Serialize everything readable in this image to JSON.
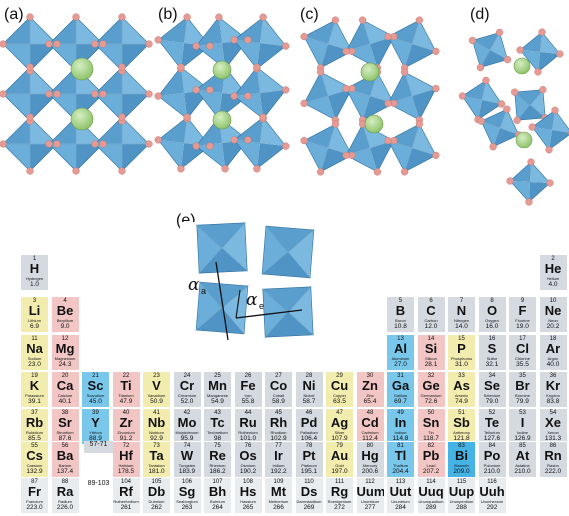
{
  "panels": [
    "(a)",
    "(b)",
    "(c)",
    "(d)",
    "(e)"
  ],
  "angles": {
    "alpha": "α",
    "sub_a": "a",
    "sub_e": "e"
  },
  "colors": {
    "octahedron": "#5fa3d0",
    "octahedron_edge": "#2f6f9f",
    "anion": "#e59a94",
    "a_cation": "#8fc46a",
    "grey": "#d4dae0",
    "pink": "#f1c6c4",
    "yellow": "#f2ecaf",
    "blue": "#79c8ec",
    "dark_blue": "#45b3e6",
    "light": "#e8ecef"
  },
  "series_labels": {
    "lanthanide_slot": "57-71",
    "actinide_slot": "89-103"
  },
  "elements": [
    {
      "n": "1",
      "s": "H",
      "name": "Hydrogen",
      "w": "1.0",
      "c": "grey",
      "col": 0,
      "row": 0
    },
    {
      "n": "2",
      "s": "He",
      "name": "Helium",
      "w": "4.0",
      "c": "grey",
      "col": 17,
      "row": 0
    },
    {
      "n": "3",
      "s": "Li",
      "name": "Lithium",
      "w": "6.9",
      "c": "yellow",
      "col": 0,
      "row": 1
    },
    {
      "n": "4",
      "s": "Be",
      "name": "Beryllium",
      "w": "9.0",
      "c": "pink",
      "col": 1,
      "row": 1
    },
    {
      "n": "5",
      "s": "B",
      "name": "Boron",
      "w": "10.8",
      "c": "grey",
      "col": 12,
      "row": 1
    },
    {
      "n": "6",
      "s": "C",
      "name": "Carbon",
      "w": "12.0",
      "c": "grey",
      "col": 13,
      "row": 1
    },
    {
      "n": "7",
      "s": "N",
      "name": "Nitrogen",
      "w": "14.0",
      "c": "grey",
      "col": 14,
      "row": 1
    },
    {
      "n": "8",
      "s": "O",
      "name": "Oxygen",
      "w": "16.0",
      "c": "grey",
      "col": 15,
      "row": 1
    },
    {
      "n": "9",
      "s": "F",
      "name": "Fluorine",
      "w": "19.0",
      "c": "grey",
      "col": 16,
      "row": 1
    },
    {
      "n": "10",
      "s": "Ne",
      "name": "Neon",
      "w": "20.2",
      "c": "grey",
      "col": 17,
      "row": 1
    },
    {
      "n": "11",
      "s": "Na",
      "name": "Sodium",
      "w": "23.0",
      "c": "yellow",
      "col": 0,
      "row": 2
    },
    {
      "n": "12",
      "s": "Mg",
      "name": "Magnesium",
      "w": "24.3",
      "c": "pink",
      "col": 1,
      "row": 2
    },
    {
      "n": "13",
      "s": "Al",
      "name": "Aluminum",
      "w": "27.0",
      "c": "blue",
      "col": 12,
      "row": 2
    },
    {
      "n": "14",
      "s": "Si",
      "name": "Silicon",
      "w": "28.1",
      "c": "pink",
      "col": 13,
      "row": 2
    },
    {
      "n": "15",
      "s": "P",
      "name": "Phosphorus",
      "w": "31.0",
      "c": "yellow",
      "col": 14,
      "row": 2
    },
    {
      "n": "16",
      "s": "S",
      "name": "Sulfur",
      "w": "32.1",
      "c": "grey",
      "col": 15,
      "row": 2
    },
    {
      "n": "17",
      "s": "Cl",
      "name": "Chlorine",
      "w": "35.5",
      "c": "grey",
      "col": 16,
      "row": 2
    },
    {
      "n": "18",
      "s": "Ar",
      "name": "Argon",
      "w": "40.0",
      "c": "grey",
      "col": 17,
      "row": 2
    },
    {
      "n": "19",
      "s": "K",
      "name": "Potassium",
      "w": "39.1",
      "c": "yellow",
      "col": 0,
      "row": 3
    },
    {
      "n": "20",
      "s": "Ca",
      "name": "Calcium",
      "w": "40.1",
      "c": "pink",
      "col": 1,
      "row": 3
    },
    {
      "n": "21",
      "s": "Sc",
      "name": "Scandium",
      "w": "45.0",
      "c": "blue",
      "col": 2,
      "row": 3
    },
    {
      "n": "22",
      "s": "Ti",
      "name": "Titanium",
      "w": "47.9",
      "c": "pink",
      "col": 3,
      "row": 3
    },
    {
      "n": "23",
      "s": "V",
      "name": "Vanadium",
      "w": "50.9",
      "c": "yellow",
      "col": 4,
      "row": 3
    },
    {
      "n": "24",
      "s": "Cr",
      "name": "Chromium",
      "w": "52.0",
      "c": "grey",
      "col": 5,
      "row": 3
    },
    {
      "n": "25",
      "s": "Mn",
      "name": "Manganese",
      "w": "54.9",
      "c": "grey",
      "col": 6,
      "row": 3
    },
    {
      "n": "26",
      "s": "Fe",
      "name": "Iron",
      "w": "55.8",
      "c": "grey",
      "col": 7,
      "row": 3
    },
    {
      "n": "27",
      "s": "Co",
      "name": "Cobalt",
      "w": "58.9",
      "c": "grey",
      "col": 8,
      "row": 3
    },
    {
      "n": "28",
      "s": "Ni",
      "name": "Nickel",
      "w": "58.7",
      "c": "grey",
      "col": 9,
      "row": 3
    },
    {
      "n": "29",
      "s": "Cu",
      "name": "Copper",
      "w": "63.5",
      "c": "yellow",
      "col": 10,
      "row": 3
    },
    {
      "n": "30",
      "s": "Zn",
      "name": "Zinc",
      "w": "65.4",
      "c": "pink",
      "col": 11,
      "row": 3
    },
    {
      "n": "31",
      "s": "Ga",
      "name": "Gallium",
      "w": "69.7",
      "c": "blue",
      "col": 12,
      "row": 3
    },
    {
      "n": "32",
      "s": "Ge",
      "name": "Germanium",
      "w": "72.6",
      "c": "pink",
      "col": 13,
      "row": 3
    },
    {
      "n": "33",
      "s": "As",
      "name": "Arsenic",
      "w": "74.9",
      "c": "yellow",
      "col": 14,
      "row": 3
    },
    {
      "n": "34",
      "s": "Se",
      "name": "Selenium",
      "w": "79.0",
      "c": "grey",
      "col": 15,
      "row": 3
    },
    {
      "n": "35",
      "s": "Br",
      "name": "Bromine",
      "w": "79.9",
      "c": "grey",
      "col": 16,
      "row": 3
    },
    {
      "n": "36",
      "s": "Kr",
      "name": "Krypton",
      "w": "83.8",
      "c": "grey",
      "col": 17,
      "row": 3
    },
    {
      "n": "37",
      "s": "Rb",
      "name": "Rubidium",
      "w": "85.5",
      "c": "yellow",
      "col": 0,
      "row": 4
    },
    {
      "n": "38",
      "s": "Sr",
      "name": "Strontium",
      "w": "87.6",
      "c": "pink",
      "col": 1,
      "row": 4
    },
    {
      "n": "39",
      "s": "Y",
      "name": "Yttrium",
      "w": "88.9",
      "c": "blue",
      "col": 2,
      "row": 4
    },
    {
      "n": "40",
      "s": "Zr",
      "name": "Zirconium",
      "w": "91.2",
      "c": "pink",
      "col": 3,
      "row": 4
    },
    {
      "n": "41",
      "s": "Nb",
      "name": "Niobium",
      "w": "92.9",
      "c": "yellow",
      "col": 4,
      "row": 4
    },
    {
      "n": "42",
      "s": "Mo",
      "name": "Molybdenum",
      "w": "95.9",
      "c": "grey",
      "col": 5,
      "row": 4
    },
    {
      "n": "43",
      "s": "Tc",
      "name": "Technetium",
      "w": "98",
      "c": "grey",
      "col": 6,
      "row": 4
    },
    {
      "n": "44",
      "s": "Ru",
      "name": "Ruthenium",
      "w": "101.0",
      "c": "grey",
      "col": 7,
      "row": 4
    },
    {
      "n": "45",
      "s": "Rh",
      "name": "Rhodium",
      "w": "102.9",
      "c": "grey",
      "col": 8,
      "row": 4
    },
    {
      "n": "46",
      "s": "Pd",
      "name": "Palladium",
      "w": "106.4",
      "c": "grey",
      "col": 9,
      "row": 4
    },
    {
      "n": "47",
      "s": "Ag",
      "name": "Silver",
      "w": "107.9",
      "c": "yellow",
      "col": 10,
      "row": 4
    },
    {
      "n": "48",
      "s": "Cd",
      "name": "Cadmium",
      "w": "112.4",
      "c": "pink",
      "col": 11,
      "row": 4
    },
    {
      "n": "49",
      "s": "In",
      "name": "Indium",
      "w": "114.8",
      "c": "blue",
      "col": 12,
      "row": 4
    },
    {
      "n": "50",
      "s": "Sn",
      "name": "Tin",
      "w": "118.7",
      "c": "pink",
      "col": 13,
      "row": 4
    },
    {
      "n": "51",
      "s": "Sb",
      "name": "Antimony",
      "w": "121.8",
      "c": "yellow",
      "col": 14,
      "row": 4
    },
    {
      "n": "52",
      "s": "Te",
      "name": "Tellurium",
      "w": "127.6",
      "c": "grey",
      "col": 15,
      "row": 4
    },
    {
      "n": "53",
      "s": "I",
      "name": "Iodine",
      "w": "126.9",
      "c": "grey",
      "col": 16,
      "row": 4
    },
    {
      "n": "54",
      "s": "Xe",
      "name": "Xenon",
      "w": "131.3",
      "c": "grey",
      "col": 17,
      "row": 4
    },
    {
      "n": "55",
      "s": "Cs",
      "name": "Caesium",
      "w": "132.9",
      "c": "yellow",
      "col": 0,
      "row": 5
    },
    {
      "n": "56",
      "s": "Ba",
      "name": "Barium",
      "w": "137.4",
      "c": "pink",
      "col": 1,
      "row": 5
    },
    {
      "n": "72",
      "s": "Hf",
      "name": "Hafnium",
      "w": "178.5",
      "c": "pink",
      "col": 3,
      "row": 5
    },
    {
      "n": "73",
      "s": "Ta",
      "name": "Tantalum",
      "w": "181.0",
      "c": "yellow",
      "col": 4,
      "row": 5
    },
    {
      "n": "74",
      "s": "W",
      "name": "Tungsten",
      "w": "183.9",
      "c": "grey",
      "col": 5,
      "row": 5
    },
    {
      "n": "75",
      "s": "Re",
      "name": "Rhenium",
      "w": "186.2",
      "c": "grey",
      "col": 6,
      "row": 5
    },
    {
      "n": "76",
      "s": "Os",
      "name": "Osmium",
      "w": "190.2",
      "c": "grey",
      "col": 7,
      "row": 5
    },
    {
      "n": "77",
      "s": "Ir",
      "name": "Iridium",
      "w": "192.2",
      "c": "grey",
      "col": 8,
      "row": 5
    },
    {
      "n": "78",
      "s": "Pt",
      "name": "Platinum",
      "w": "195.1",
      "c": "grey",
      "col": 9,
      "row": 5
    },
    {
      "n": "79",
      "s": "Au",
      "name": "Gold",
      "w": "197.0",
      "c": "yellow",
      "col": 10,
      "row": 5
    },
    {
      "n": "80",
      "s": "Hg",
      "name": "Mercury",
      "w": "200.6",
      "c": "grey",
      "col": 11,
      "row": 5
    },
    {
      "n": "81",
      "s": "Tl",
      "name": "Thallium",
      "w": "204.4",
      "c": "blue",
      "col": 12,
      "row": 5
    },
    {
      "n": "82",
      "s": "Pb",
      "name": "Lead",
      "w": "207.2",
      "c": "pink",
      "col": 13,
      "row": 5
    },
    {
      "n": "83",
      "s": "Bi",
      "name": "Bismuth",
      "w": "209.0",
      "c": "dark_blue",
      "col": 14,
      "row": 5
    },
    {
      "n": "84",
      "s": "Po",
      "name": "Polonium",
      "w": "210.0",
      "c": "grey",
      "col": 15,
      "row": 5
    },
    {
      "n": "85",
      "s": "At",
      "name": "Astatine",
      "w": "210.0",
      "c": "grey",
      "col": 16,
      "row": 5
    },
    {
      "n": "86",
      "s": "Rn",
      "name": "Radon",
      "w": "222.0",
      "c": "grey",
      "col": 17,
      "row": 5
    },
    {
      "n": "87",
      "s": "Fr",
      "name": "Francium",
      "w": "223.0",
      "c": "light",
      "col": 0,
      "row": 6
    },
    {
      "n": "88",
      "s": "Ra",
      "name": "Radium",
      "w": "226.0",
      "c": "light",
      "col": 1,
      "row": 6
    },
    {
      "n": "104",
      "s": "Rf",
      "name": "Rutherfordium",
      "w": "261",
      "c": "light",
      "col": 3,
      "row": 6
    },
    {
      "n": "105",
      "s": "Db",
      "name": "Dubnium",
      "w": "262",
      "c": "light",
      "col": 4,
      "row": 6
    },
    {
      "n": "106",
      "s": "Sg",
      "name": "Seaborgium",
      "w": "263",
      "c": "light",
      "col": 5,
      "row": 6
    },
    {
      "n": "107",
      "s": "Bh",
      "name": "Bohrium",
      "w": "264",
      "c": "light",
      "col": 6,
      "row": 6
    },
    {
      "n": "108",
      "s": "Hs",
      "name": "Hassium",
      "w": "265",
      "c": "light",
      "col": 7,
      "row": 6
    },
    {
      "n": "109",
      "s": "Mt",
      "name": "Meitnerium",
      "w": "266",
      "c": "light",
      "col": 8,
      "row": 6
    },
    {
      "n": "110",
      "s": "Ds",
      "name": "Darmstadtium",
      "w": "269",
      "c": "light",
      "col": 9,
      "row": 6
    },
    {
      "n": "111",
      "s": "Rg",
      "name": "Roentgenium",
      "w": "272",
      "c": "light",
      "col": 10,
      "row": 6
    },
    {
      "n": "112",
      "s": "Uum",
      "name": "Ununbium",
      "w": "277",
      "c": "light",
      "col": 11,
      "row": 6
    },
    {
      "n": "113",
      "s": "Uut",
      "name": "Ununtrium",
      "w": "284",
      "c": "light",
      "col": 12,
      "row": 6
    },
    {
      "n": "114",
      "s": "Uuq",
      "name": "Ununquadium",
      "w": "289",
      "c": "light",
      "col": 13,
      "row": 6
    },
    {
      "n": "115",
      "s": "Uup",
      "name": "Ununpentium",
      "w": "288",
      "c": "light",
      "col": 14,
      "row": 6
    },
    {
      "n": "116",
      "s": "Uuh",
      "name": "Ununhexium",
      "w": "292",
      "c": "light",
      "col": 15,
      "row": 6
    }
  ]
}
